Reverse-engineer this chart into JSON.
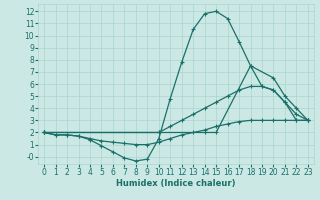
{
  "xlabel": "Humidex (Indice chaleur)",
  "bg_color": "#cce8e5",
  "grid_color": "#aad4d0",
  "line_color": "#1a7068",
  "xlim": [
    -0.5,
    23.5
  ],
  "ylim": [
    -0.6,
    12.6
  ],
  "xticks": [
    0,
    1,
    2,
    3,
    4,
    5,
    6,
    7,
    8,
    9,
    10,
    11,
    12,
    13,
    14,
    15,
    16,
    17,
    18,
    19,
    20,
    21,
    22,
    23
  ],
  "yticks": [
    0,
    1,
    2,
    3,
    4,
    5,
    6,
    7,
    8,
    9,
    10,
    11,
    12
  ],
  "yticklabels": [
    "12",
    "11",
    "10",
    "9",
    "8",
    "7",
    "6",
    "5",
    "4",
    "3",
    "2",
    "1",
    "-0"
  ],
  "series": [
    {
      "x": [
        0,
        1,
        2,
        3,
        4,
        5,
        6,
        7,
        8,
        9,
        10,
        11,
        12,
        13,
        14,
        15,
        16,
        17,
        18,
        19,
        20,
        21,
        22,
        23
      ],
      "y": [
        2,
        1.8,
        1.8,
        1.7,
        1.4,
        0.9,
        0.4,
        -0.1,
        -0.35,
        -0.2,
        1.5,
        4.8,
        7.8,
        10.5,
        11.8,
        12.0,
        11.4,
        9.5,
        7.5,
        5.8,
        5.5,
        4.5,
        3.0,
        3.0
      ]
    },
    {
      "x": [
        0,
        10,
        14,
        15,
        18,
        20,
        21,
        22,
        23
      ],
      "y": [
        2,
        2,
        2,
        2,
        7.5,
        6.5,
        5.0,
        4.0,
        3.0
      ]
    },
    {
      "x": [
        0,
        1,
        2,
        3,
        4,
        5,
        6,
        7,
        8,
        9,
        10,
        11,
        12,
        13,
        14,
        15,
        16,
        17,
        18,
        19,
        20,
        21,
        22,
        23
      ],
      "y": [
        2,
        1.8,
        1.8,
        1.7,
        1.5,
        1.3,
        1.2,
        1.1,
        1.0,
        1.0,
        1.2,
        1.5,
        1.8,
        2.0,
        2.2,
        2.5,
        2.7,
        2.9,
        3.0,
        3.0,
        3.0,
        3.0,
        3.0,
        3.0
      ]
    },
    {
      "x": [
        0,
        10,
        11,
        12,
        13,
        14,
        15,
        16,
        17,
        18,
        19,
        20,
        21,
        22,
        23
      ],
      "y": [
        2,
        2,
        2.5,
        3.0,
        3.5,
        4.0,
        4.5,
        5.0,
        5.5,
        5.8,
        5.8,
        5.5,
        4.5,
        3.5,
        3.0
      ]
    }
  ]
}
